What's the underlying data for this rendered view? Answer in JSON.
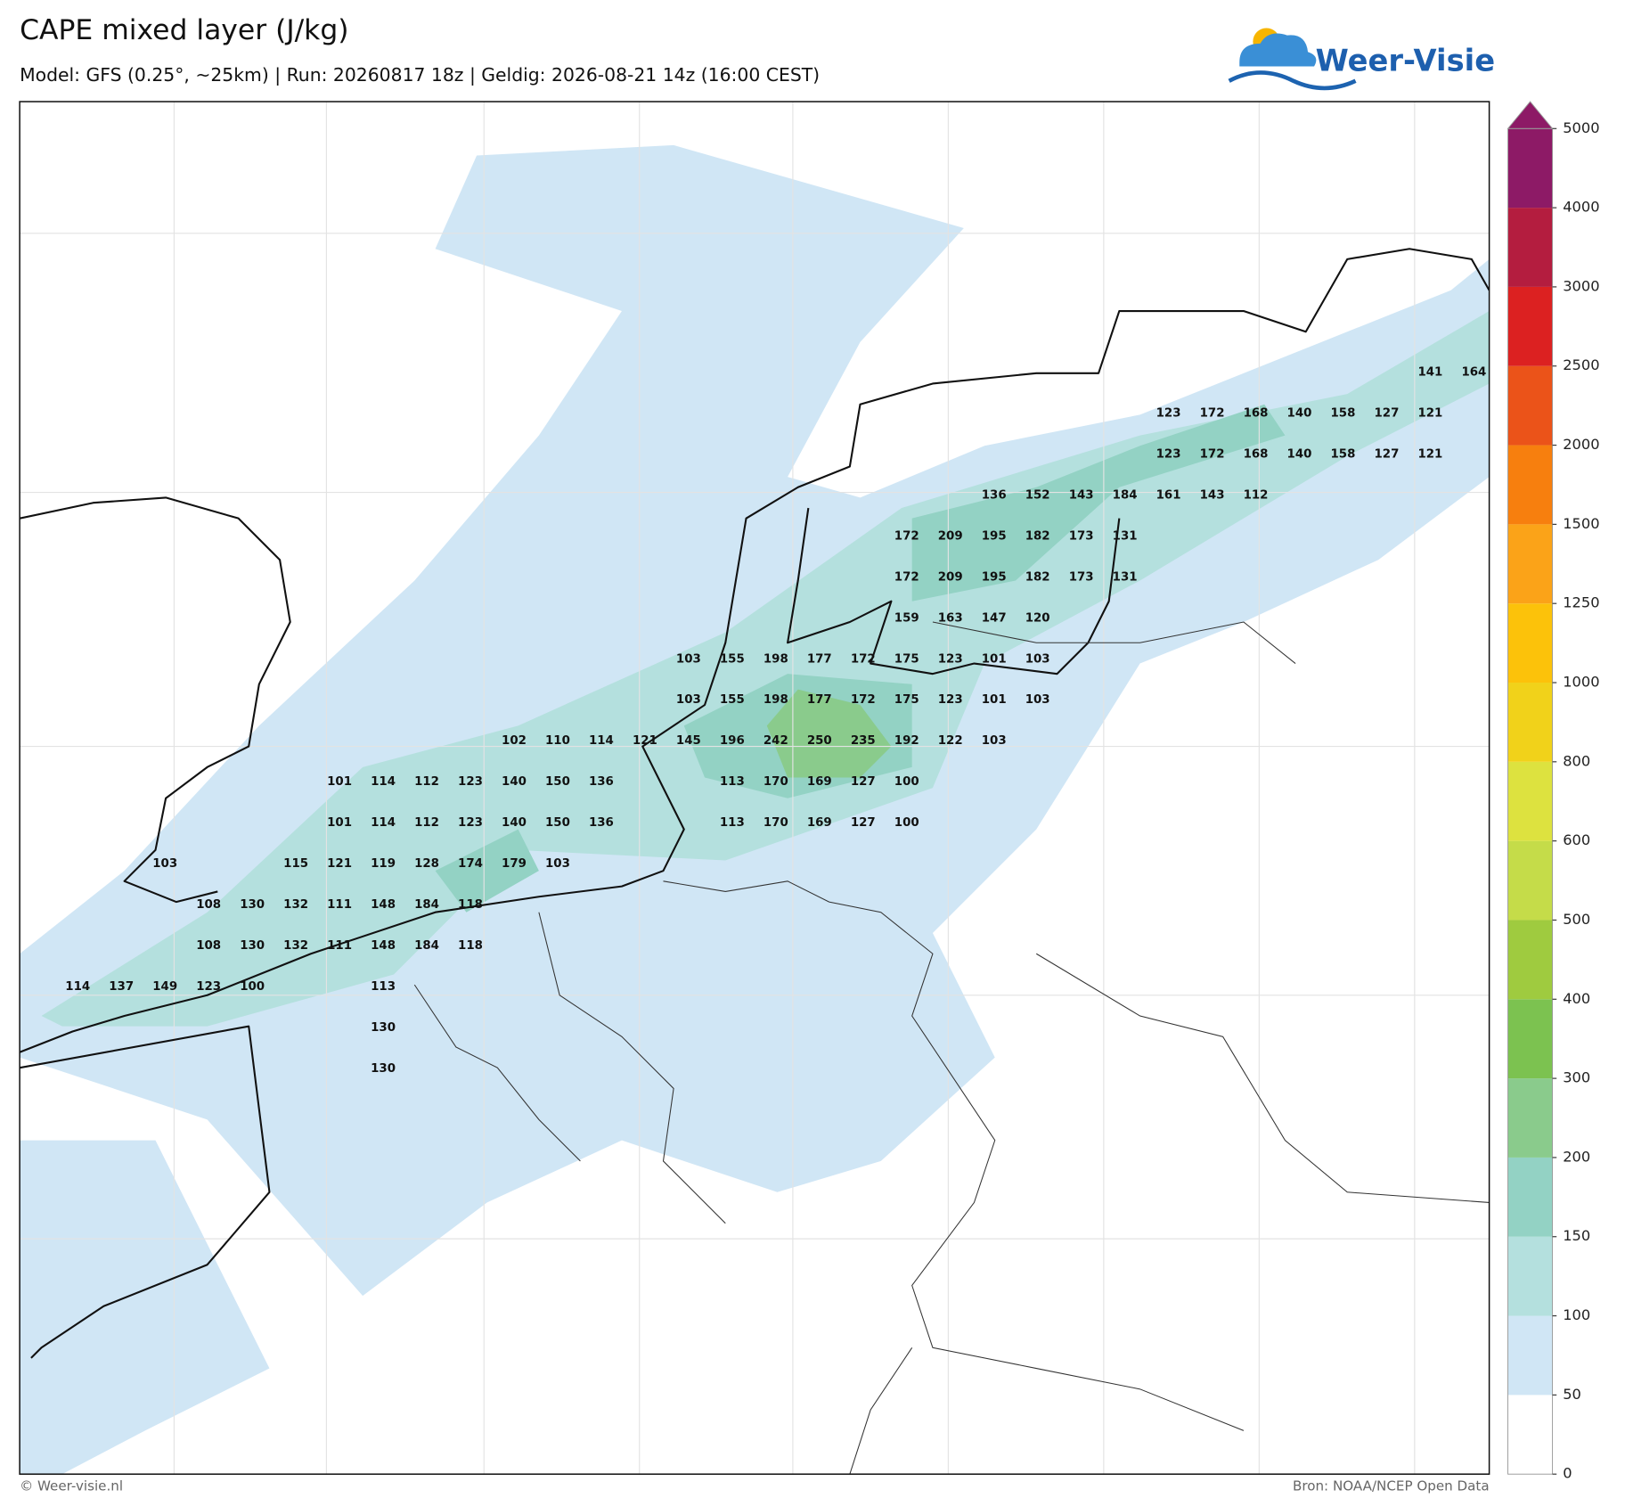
{
  "header": {
    "title": "CAPE mixed layer (J/kg)",
    "subtitle": "Model: GFS (0.25°, ~25km)  |  Run: 20260817 18z  |  Geldig: 2026-08-21 14z (16:00 CEST)"
  },
  "logo": {
    "text": "Weer-Visie"
  },
  "map": {
    "grid_labels": [
      [
        null,
        null,
        null,
        null,
        null,
        null,
        null,
        null,
        null,
        null,
        null,
        null,
        null,
        null,
        null,
        null,
        null,
        null,
        null,
        null,
        null,
        null,
        null,
        null,
        null,
        null,
        null,
        null,
        null,
        null,
        null,
        141,
        164
      ],
      [
        null,
        null,
        null,
        null,
        null,
        null,
        null,
        null,
        null,
        null,
        null,
        null,
        null,
        null,
        null,
        null,
        null,
        null,
        null,
        null,
        null,
        null,
        null,
        null,
        null,
        123,
        172,
        168,
        140,
        158,
        127,
        121
      ],
      [
        null,
        null,
        null,
        null,
        null,
        null,
        null,
        null,
        null,
        null,
        null,
        null,
        null,
        null,
        null,
        null,
        null,
        null,
        null,
        null,
        null,
        null,
        null,
        null,
        null,
        123,
        172,
        168,
        140,
        158,
        127,
        121
      ],
      [
        null,
        null,
        null,
        null,
        null,
        null,
        null,
        null,
        null,
        null,
        null,
        null,
        null,
        null,
        null,
        null,
        null,
        null,
        null,
        null,
        null,
        136,
        152,
        143,
        184,
        161,
        143,
        112
      ],
      [
        null,
        null,
        null,
        null,
        null,
        null,
        null,
        null,
        null,
        null,
        null,
        null,
        null,
        null,
        null,
        null,
        null,
        null,
        null,
        172,
        209,
        195,
        182,
        173,
        131
      ],
      [
        null,
        null,
        null,
        null,
        null,
        null,
        null,
        null,
        null,
        null,
        null,
        null,
        null,
        null,
        null,
        null,
        null,
        null,
        null,
        172,
        209,
        195,
        182,
        173,
        131
      ],
      [
        null,
        null,
        null,
        null,
        null,
        null,
        null,
        null,
        null,
        null,
        null,
        null,
        null,
        null,
        null,
        null,
        null,
        null,
        null,
        159,
        163,
        147,
        120
      ],
      [
        null,
        null,
        null,
        null,
        null,
        null,
        null,
        null,
        null,
        null,
        null,
        null,
        null,
        null,
        103,
        155,
        198,
        177,
        172,
        175,
        123,
        101,
        103
      ],
      [
        null,
        null,
        null,
        null,
        null,
        null,
        null,
        null,
        null,
        null,
        null,
        null,
        null,
        null,
        103,
        155,
        198,
        177,
        172,
        175,
        123,
        101,
        103
      ],
      [
        null,
        null,
        null,
        null,
        null,
        null,
        null,
        null,
        null,
        null,
        102,
        110,
        114,
        121,
        145,
        196,
        242,
        250,
        235,
        192,
        122,
        103
      ],
      [
        null,
        null,
        null,
        null,
        null,
        null,
        101,
        114,
        112,
        123,
        140,
        150,
        136,
        null,
        null,
        113,
        170,
        169,
        127,
        100
      ],
      [
        null,
        null,
        null,
        null,
        null,
        null,
        101,
        114,
        112,
        123,
        140,
        150,
        136,
        null,
        null,
        113,
        170,
        169,
        127,
        100
      ],
      [
        null,
        null,
        103,
        null,
        null,
        115,
        121,
        119,
        128,
        174,
        179,
        103
      ],
      [
        null,
        null,
        null,
        108,
        130,
        132,
        111,
        148,
        184,
        118
      ],
      [
        null,
        null,
        null,
        108,
        130,
        132,
        111,
        148,
        184,
        118
      ],
      [
        114,
        137,
        149,
        123,
        100,
        null,
        null,
        113
      ],
      [
        null,
        null,
        null,
        null,
        null,
        null,
        null,
        130
      ],
      [
        null,
        null,
        null,
        null,
        null,
        null,
        null,
        130
      ]
    ]
  },
  "colorbar": {
    "ticks": [
      0,
      50,
      100,
      150,
      200,
      300,
      400,
      500,
      600,
      800,
      1000,
      1250,
      1500,
      2000,
      2500,
      3000,
      4000,
      5000
    ],
    "colors": [
      "#ffffff",
      "#d0e6f5",
      "#b4e0de",
      "#93d2c4",
      "#8acb8c",
      "#7cc250",
      "#9fcb3f",
      "#c5dc49",
      "#dde23f",
      "#f1d21a",
      "#fcc20a",
      "#fba318",
      "#f77f0e",
      "#eb5319",
      "#dc2121",
      "#b41d3f",
      "#8d1a66"
    ],
    "extend_color": "#8d1a66"
  },
  "footer": {
    "left": "© Weer-visie.nl",
    "right": "Bron: NOAA/NCEP Open Data"
  }
}
